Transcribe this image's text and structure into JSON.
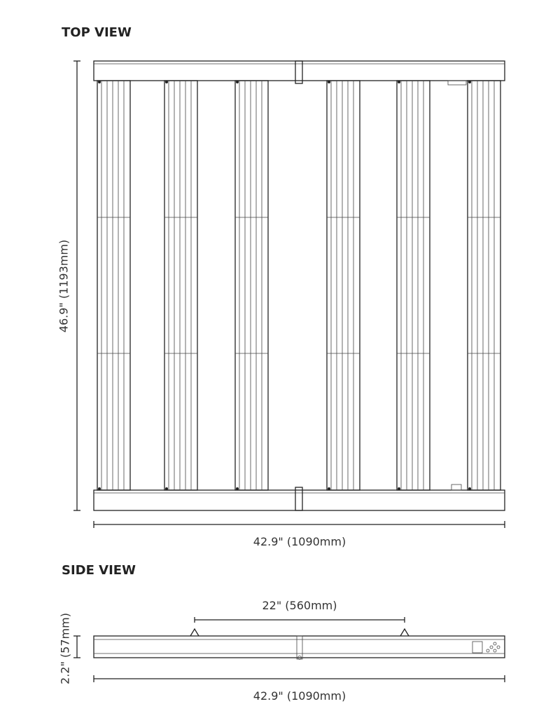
{
  "top_view": {
    "title": "TOP VIEW",
    "height_label": "46.9\" (1193mm)",
    "width_label": "42.9\" (1090mm)"
  },
  "side_view": {
    "title": "SIDE VIEW",
    "spacing_label": "22\" (560mm)",
    "height_label": "2.2\" (57mm)",
    "width_label": "42.9\" (1090mm)"
  }
}
